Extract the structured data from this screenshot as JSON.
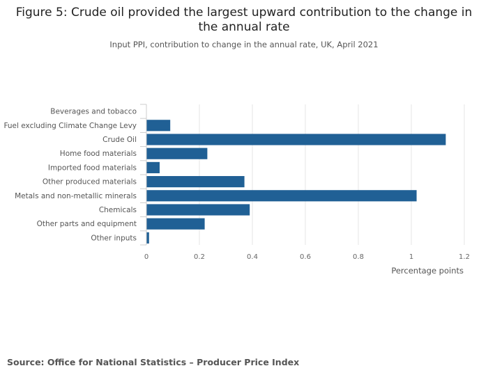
{
  "chart_data": {
    "type": "bar",
    "orientation": "horizontal",
    "title": "Figure 5: Crude oil provided the largest upward contribution to the change in the annual rate",
    "subtitle": "Input PPI, contribution to change in the annual rate, UK, April 2021",
    "xlabel": "Percentage points",
    "ylabel": "",
    "xlim": [
      0,
      1.2
    ],
    "xticks": [
      0,
      0.2,
      0.4,
      0.6,
      0.8,
      1,
      1.2
    ],
    "xtick_labels": [
      "0",
      "0.2",
      "0.4",
      "0.6",
      "0.8",
      "1",
      "1.2"
    ],
    "grid": true,
    "categories": [
      "Beverages and tobacco",
      "Fuel excluding Climate Change Levy",
      "Crude Oil",
      "Home food materials",
      "Imported food materials",
      "Other produced materials",
      "Metals and non-metallic minerals",
      "Chemicals",
      "Other parts and equipment",
      "Other inputs"
    ],
    "values": [
      0,
      0.09,
      1.13,
      0.23,
      0.05,
      0.37,
      1.02,
      0.39,
      0.22,
      0.01
    ],
    "bar_color": "#206095"
  },
  "source": "Source: Office for National Statistics – Producer Price Index"
}
